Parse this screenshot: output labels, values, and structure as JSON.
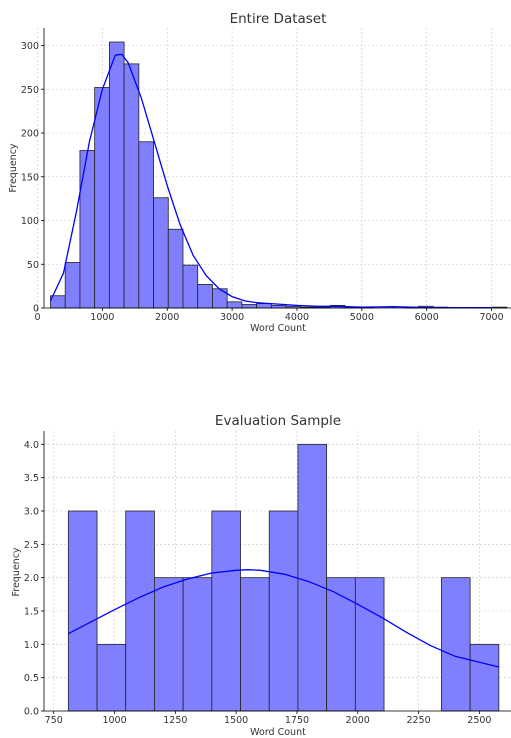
{
  "chart_data": [
    {
      "type": "bar",
      "title": "Entire Dataset",
      "xlabel": "Word Count",
      "ylabel": "Frequency",
      "xlim": [
        100,
        7300
      ],
      "ylim": [
        0,
        320
      ],
      "xticks": [
        0,
        1000,
        2000,
        3000,
        4000,
        5000,
        6000,
        7000
      ],
      "yticks": [
        0,
        50,
        100,
        150,
        200,
        250,
        300
      ],
      "bin_start": 200,
      "bin_width": 227,
      "values": [
        14,
        52,
        180,
        252,
        304,
        279,
        190,
        126,
        90,
        49,
        27,
        22,
        7,
        4,
        5,
        3,
        2,
        1,
        1,
        3,
        1,
        1,
        0,
        0,
        1,
        2,
        1,
        0,
        0,
        0,
        1
      ],
      "kde": [
        [
          200,
          8
        ],
        [
          400,
          40
        ],
        [
          600,
          110
        ],
        [
          800,
          190
        ],
        [
          1000,
          250
        ],
        [
          1200,
          289
        ],
        [
          1300,
          290
        ],
        [
          1400,
          280
        ],
        [
          1600,
          240
        ],
        [
          1800,
          190
        ],
        [
          2000,
          140
        ],
        [
          2200,
          95
        ],
        [
          2400,
          60
        ],
        [
          2600,
          37
        ],
        [
          2800,
          22
        ],
        [
          3000,
          13
        ],
        [
          3200,
          8
        ],
        [
          3400,
          6
        ],
        [
          3600,
          5
        ],
        [
          3800,
          4
        ],
        [
          4000,
          3
        ],
        [
          4300,
          2
        ],
        [
          4600,
          2
        ],
        [
          5000,
          1
        ],
        [
          5500,
          1.5
        ],
        [
          6000,
          0.5
        ],
        [
          7000,
          0.3
        ]
      ],
      "bar_color": "#8080ff",
      "line_color": "#0000ff",
      "grid": true
    },
    {
      "type": "bar",
      "title": "Evaluation Sample",
      "xlabel": "Word Count",
      "ylabel": "Frequency",
      "xlim": [
        710,
        2630
      ],
      "ylim": [
        0,
        4.2
      ],
      "xticks": [
        750,
        1000,
        1250,
        1500,
        1750,
        2000,
        2250,
        2500
      ],
      "yticks": [
        "0.0",
        "0.5",
        "1.0",
        "1.5",
        "2.0",
        "2.5",
        "3.0",
        "3.5",
        "4.0"
      ],
      "bin_start": 810,
      "bin_width": 118,
      "values": [
        3,
        1,
        3,
        2,
        2,
        3,
        2,
        3,
        4,
        2,
        2,
        0,
        0,
        2,
        1
      ],
      "kde": [
        [
          810,
          1.16
        ],
        [
          900,
          1.33
        ],
        [
          1000,
          1.52
        ],
        [
          1100,
          1.7
        ],
        [
          1200,
          1.86
        ],
        [
          1300,
          1.98
        ],
        [
          1400,
          2.07
        ],
        [
          1500,
          2.11
        ],
        [
          1550,
          2.12
        ],
        [
          1600,
          2.11
        ],
        [
          1700,
          2.05
        ],
        [
          1800,
          1.94
        ],
        [
          1900,
          1.79
        ],
        [
          2000,
          1.6
        ],
        [
          2100,
          1.4
        ],
        [
          2200,
          1.18
        ],
        [
          2300,
          0.98
        ],
        [
          2400,
          0.82
        ],
        [
          2500,
          0.73
        ],
        [
          2580,
          0.66
        ]
      ],
      "bar_color": "#8080ff",
      "line_color": "#0000ff",
      "grid": true
    }
  ]
}
